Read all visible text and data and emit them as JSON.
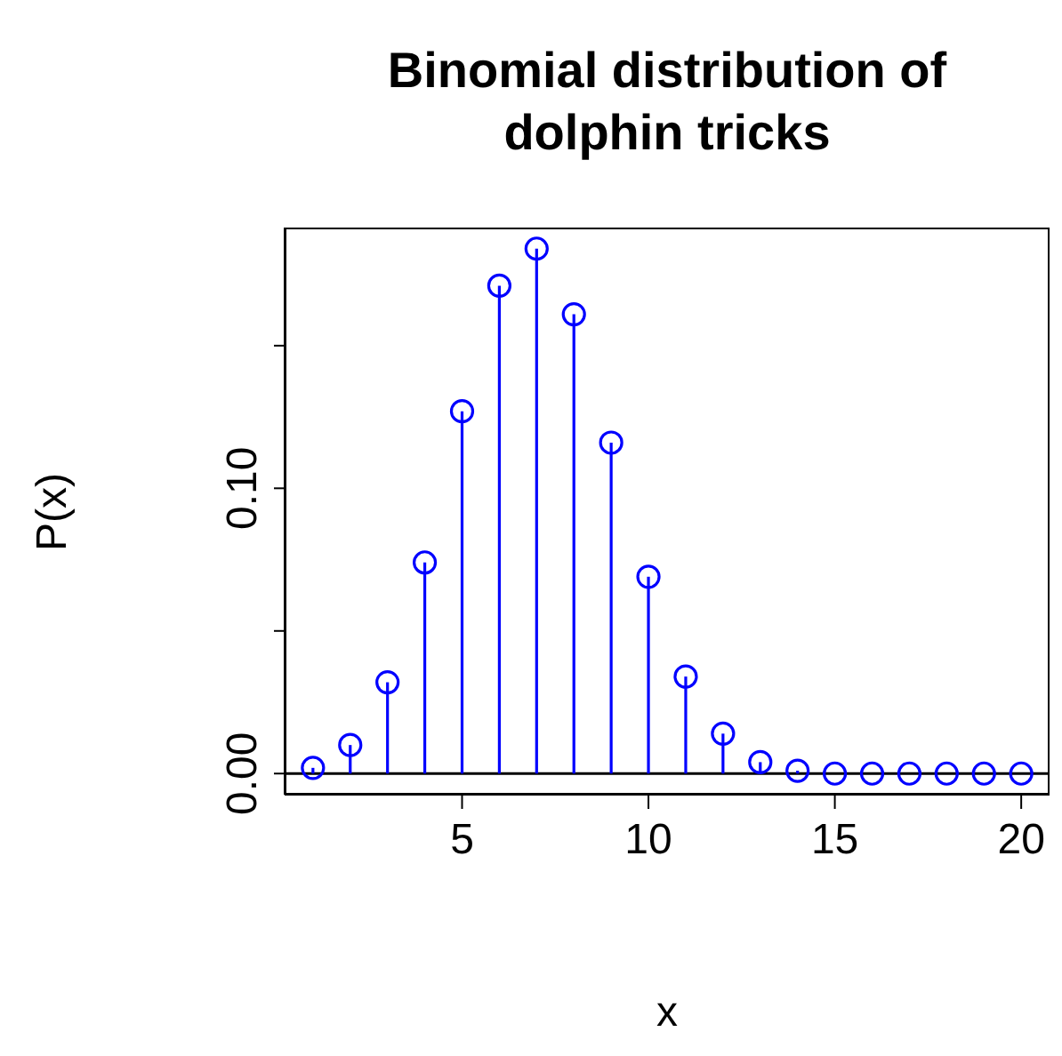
{
  "chart_data": {
    "type": "lollipop",
    "title": "Binomial distribution of\ndolphin tricks",
    "xlabel": "x",
    "ylabel": "P(x)",
    "x": [
      1,
      2,
      3,
      4,
      5,
      6,
      7,
      8,
      9,
      10,
      11,
      12,
      13,
      14,
      15,
      16,
      17,
      18,
      19,
      20
    ],
    "series": [
      {
        "color": "#0000ff",
        "values": [
          0.002,
          0.01,
          0.032,
          0.074,
          0.127,
          0.171,
          0.184,
          0.161,
          0.116,
          0.069,
          0.034,
          0.014,
          0.004,
          0.001,
          0.0,
          0.0,
          0.0,
          0.0,
          0.0,
          0.0
        ]
      }
    ],
    "xlim": [
      0.24,
      20.76
    ],
    "xticks": [
      5,
      10,
      15,
      20
    ],
    "ylim": [
      -0.0074,
      0.1914
    ],
    "yticks": [
      {
        "value": 0,
        "label": "0.00"
      },
      {
        "value": 0.05,
        "label": null
      },
      {
        "value": 0.1,
        "label": "0.10"
      },
      {
        "value": 0.15,
        "label": null
      }
    ],
    "ref_lines": [
      {
        "axis": "y",
        "value": 0,
        "color": "#000000"
      }
    ],
    "marker": "circle"
  }
}
